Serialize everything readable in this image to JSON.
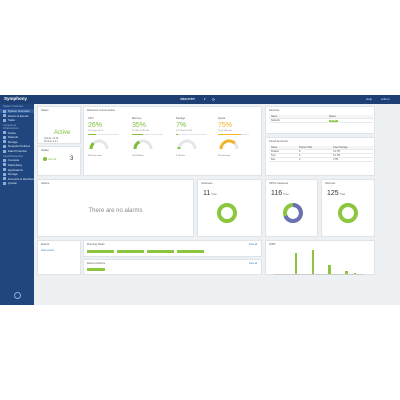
{
  "app": {
    "brand": "Symphony",
    "datacenter": "datacenter",
    "help": "Help",
    "user": "Admin"
  },
  "sidebar": {
    "sections": [
      {
        "label": "System Overview",
        "items": [
          {
            "label": "System Overview",
            "icon": "dashboard-icon",
            "active": true
          },
          {
            "label": "Alarms & Events",
            "icon": "bell-icon"
          },
          {
            "label": "Tasks",
            "icon": "list-icon"
          }
        ]
      },
      {
        "label": "Compute & Infrastructure",
        "items": [
          {
            "label": "Nodes",
            "icon": "server-icon"
          },
          {
            "label": "Network",
            "icon": "network-icon"
          },
          {
            "label": "Storage",
            "icon": "database-icon"
          },
          {
            "label": "Snapshot Policies",
            "icon": "camera-icon"
          },
          {
            "label": "Data Protection",
            "icon": "shield-icon"
          }
        ]
      },
      {
        "label": "Cloud Resources",
        "items": [
          {
            "label": "Compute",
            "icon": "cpu-icon"
          },
          {
            "label": "Networking",
            "icon": "globe-icon"
          },
          {
            "label": "Applications",
            "icon": "apps-icon"
          },
          {
            "label": "Storage",
            "icon": "disk-icon"
          },
          {
            "label": "Accounts & Identities",
            "icon": "users-icon"
          },
          {
            "label": "Quotas",
            "icon": "gauge-icon"
          }
        ]
      }
    ]
  },
  "status": {
    "title": "Status",
    "value": "Active",
    "line1": "Uptime: 1d 2h",
    "line2": "Version: 4.2.1"
  },
  "nodes_card": {
    "title": "Nodes",
    "count": "3",
    "link": "View all"
  },
  "resources": {
    "title": "Resource Consumption",
    "columns": [
      {
        "label": "CPU",
        "percent": "26%",
        "value": 0.26,
        "sub": "3.2 Cores of 12",
        "foot": "8.8 Cores free",
        "color": "#7dbe3a"
      },
      {
        "label": "Memory",
        "percent": "35%",
        "value": 0.35,
        "sub": "67 GB of 192 GB",
        "foot": "125 GB free",
        "color": "#7dbe3a"
      },
      {
        "label": "Storage",
        "percent": "7%",
        "value": 0.07,
        "sub": "0.3 TB of 4.3 TB",
        "foot": "4 TB free",
        "color": "#7dbe3a"
      },
      {
        "label": "Quota",
        "percent": "75%",
        "value": 0.75,
        "sub": "75 of 100 units",
        "foot": "25 units free",
        "color": "#f0b32a"
      }
    ]
  },
  "services": {
    "title": "Services",
    "headers": [
      "Name",
      "Status"
    ],
    "rows": [
      [
        "Network",
        "Active"
      ]
    ]
  },
  "accounts": {
    "title": "Cloud Accounts",
    "headers": [
      "Name",
      "Hosted VMs",
      "Used Storage"
    ],
    "rows": [
      [
        "Default",
        "6",
        "0.2 TB"
      ],
      [
        "Test",
        "2",
        "0.1 TB"
      ],
      [
        "Dev",
        "0",
        "0 TB"
      ]
    ]
  },
  "alarms": {
    "title": "Alarms",
    "empty": "There are no alarms"
  },
  "instances": {
    "title": "Instances",
    "count": "11",
    "unit": "Total"
  },
  "vpc": {
    "title": "VPCs Instances",
    "count": "116",
    "unit": "Total"
  },
  "volumes": {
    "title": "Volumes",
    "count": "125",
    "unit": "Total"
  },
  "events": {
    "title": "Events",
    "link": "View events"
  },
  "tasks": {
    "title": "Running Tasks",
    "link": "View all"
  },
  "actions": {
    "title": "Recent Actions",
    "link": "View all"
  },
  "iops": {
    "title": "IOPS",
    "bars": [
      0.0,
      0.0,
      0.85,
      0.0,
      0.95,
      0.0,
      0.35,
      0.0,
      0.12,
      0.05
    ]
  }
}
